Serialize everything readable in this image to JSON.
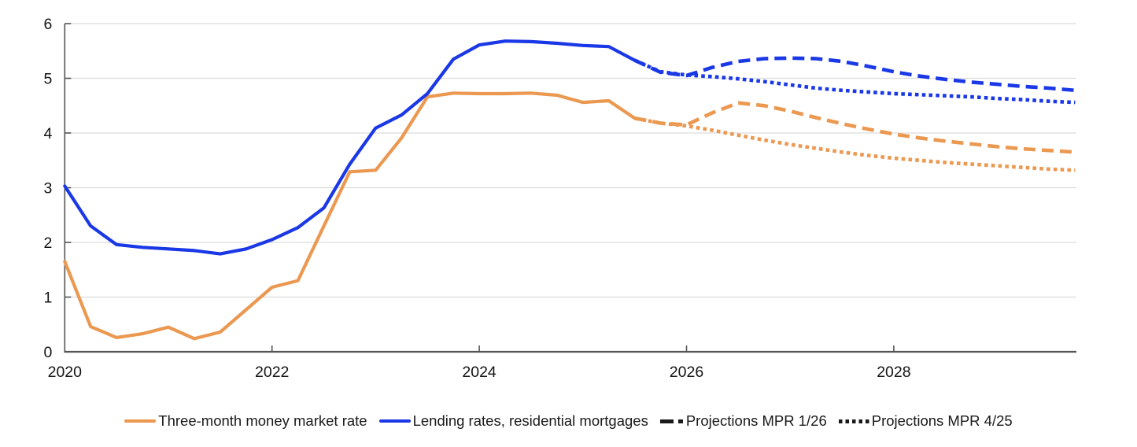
{
  "chart_data": {
    "type": "line",
    "title": "",
    "xlabel": "",
    "ylabel": "",
    "grid": true,
    "legend_position": "bottom",
    "xlim": [
      2020,
      2029.83
    ],
    "ylim": [
      0,
      6
    ],
    "x_ticks": [
      2020,
      2022,
      2024,
      2026,
      2028
    ],
    "x_tick_labels": [
      "2020",
      "2022",
      "2024",
      "2026",
      "2028"
    ],
    "y_ticks": [
      0,
      1,
      2,
      3,
      4,
      5,
      6
    ],
    "y_tick_labels": [
      "0",
      "1",
      "2",
      "3",
      "4",
      "5",
      "6"
    ],
    "colors": {
      "orange": "#EB9851",
      "blue": "#1A38E6",
      "grid": "#DCDCDC",
      "axis": "#555555",
      "text": "#141414",
      "legend_projection": "#1A1A1A"
    },
    "series": [
      {
        "name": "Three-month money market rate, projection MPR 4/25",
        "color": "#EB9851",
        "style": "dotted",
        "x": [
          2025.5,
          2025.75,
          2026,
          2026.25,
          2026.5,
          2026.75,
          2027,
          2027.25,
          2027.5,
          2027.75,
          2028,
          2028.25,
          2028.5,
          2028.75,
          2029,
          2029.25,
          2029.5,
          2029.75
        ],
        "values": [
          4.27,
          4.18,
          4.13,
          4.05,
          3.96,
          3.87,
          3.79,
          3.72,
          3.65,
          3.59,
          3.54,
          3.5,
          3.46,
          3.43,
          3.4,
          3.37,
          3.34,
          3.32
        ]
      },
      {
        "name": "Lending rates, residential mortgages, projection MPR 4/25",
        "color": "#1A38E6",
        "style": "dotted",
        "x": [
          2025.5,
          2025.75,
          2026,
          2026.25,
          2026.5,
          2026.75,
          2027,
          2027.25,
          2027.5,
          2027.75,
          2028,
          2028.25,
          2028.5,
          2028.75,
          2029,
          2029.25,
          2029.5,
          2029.75
        ],
        "values": [
          5.33,
          5.12,
          5.06,
          5.03,
          4.99,
          4.94,
          4.88,
          4.82,
          4.78,
          4.75,
          4.72,
          4.7,
          4.68,
          4.66,
          4.63,
          4.61,
          4.58,
          4.56
        ]
      },
      {
        "name": "Three-month money market rate, projection MPR 1/26",
        "color": "#EB9851",
        "style": "dashed",
        "x": [
          2025.5,
          2025.75,
          2026,
          2026.25,
          2026.5,
          2026.75,
          2027,
          2027.25,
          2027.5,
          2027.75,
          2028,
          2028.25,
          2028.5,
          2028.75,
          2029,
          2029.25,
          2029.5,
          2029.75
        ],
        "values": [
          4.27,
          4.18,
          4.15,
          4.37,
          4.55,
          4.5,
          4.4,
          4.28,
          4.17,
          4.07,
          3.98,
          3.91,
          3.85,
          3.8,
          3.75,
          3.71,
          3.68,
          3.65
        ]
      },
      {
        "name": "Lending rates, residential mortgages, projection MPR 1/26",
        "color": "#1A38E6",
        "style": "dashed",
        "x": [
          2025.5,
          2025.75,
          2026,
          2026.25,
          2026.5,
          2026.75,
          2027,
          2027.25,
          2027.5,
          2027.75,
          2028,
          2028.25,
          2028.5,
          2028.75,
          2029,
          2029.25,
          2029.5,
          2029.75
        ],
        "values": [
          5.33,
          5.11,
          5.05,
          5.2,
          5.31,
          5.36,
          5.37,
          5.36,
          5.31,
          5.22,
          5.12,
          5.04,
          4.98,
          4.93,
          4.89,
          4.85,
          4.82,
          4.78
        ]
      },
      {
        "name": "Three-month money market rate",
        "color": "#EB9851",
        "style": "solid",
        "x": [
          2020,
          2020.25,
          2020.5,
          2020.75,
          2021,
          2021.25,
          2021.5,
          2021.75,
          2022,
          2022.25,
          2022.5,
          2022.75,
          2023,
          2023.25,
          2023.5,
          2023.75,
          2024,
          2024.25,
          2024.5,
          2024.75,
          2025,
          2025.25,
          2025.5
        ],
        "values": [
          1.65,
          0.46,
          0.26,
          0.33,
          0.45,
          0.24,
          0.36,
          0.77,
          1.18,
          1.3,
          2.3,
          3.29,
          3.32,
          3.91,
          4.66,
          4.73,
          4.72,
          4.72,
          4.73,
          4.69,
          4.56,
          4.59,
          4.27
        ]
      },
      {
        "name": "Lending rates, residential mortgages",
        "color": "#1A38E6",
        "style": "solid",
        "x": [
          2020,
          2020.25,
          2020.5,
          2020.75,
          2021,
          2021.25,
          2021.5,
          2021.75,
          2022,
          2022.25,
          2022.5,
          2022.75,
          2023,
          2023.25,
          2023.5,
          2023.75,
          2024,
          2024.25,
          2024.5,
          2024.75,
          2025,
          2025.25,
          2025.5
        ],
        "values": [
          3.03,
          2.3,
          1.96,
          1.91,
          1.88,
          1.85,
          1.79,
          1.88,
          2.05,
          2.27,
          2.63,
          3.43,
          4.09,
          4.33,
          4.72,
          5.35,
          5.61,
          5.68,
          5.67,
          5.64,
          5.6,
          5.58,
          5.33
        ]
      }
    ]
  },
  "legend": [
    {
      "label": "Three-month money market rate",
      "style": "solid",
      "color": "#EB9851"
    },
    {
      "label": "Lending rates, residential mortgages",
      "style": "solid",
      "color": "#1A38E6"
    },
    {
      "label": "Projections MPR 1/26",
      "style": "dashed",
      "color": "#1A1A1A"
    },
    {
      "label": "Projections MPR 4/25",
      "style": "dotted",
      "color": "#1A1A1A"
    }
  ]
}
